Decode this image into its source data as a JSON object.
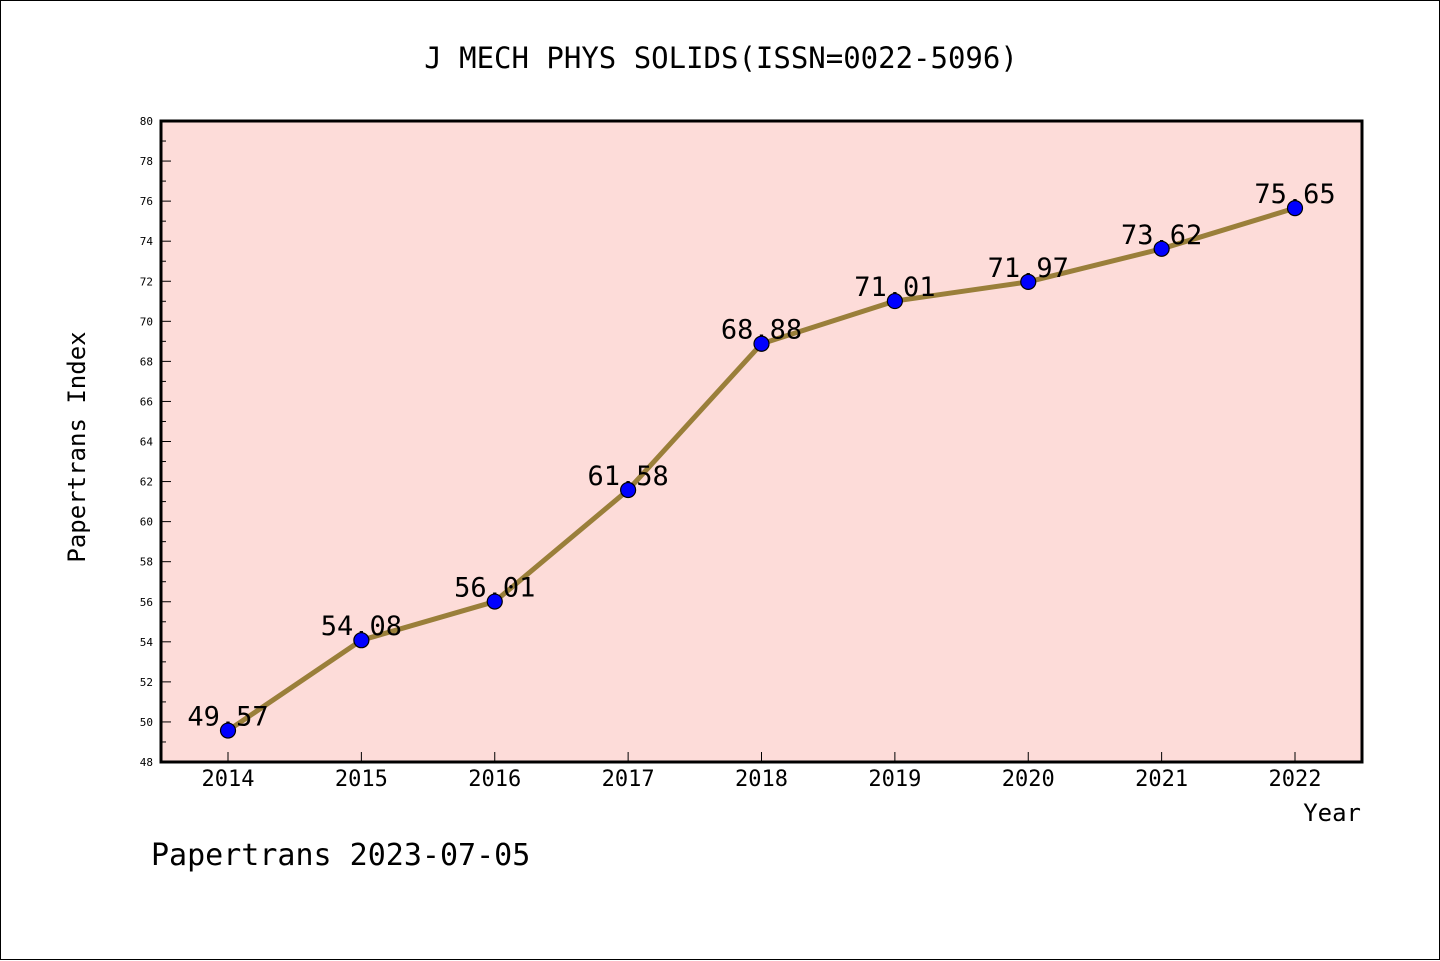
{
  "chart_data": {
    "type": "line",
    "title": "J MECH PHYS SOLIDS(ISSN=0022-5096)",
    "xlabel": "Year",
    "ylabel": "Papertrans Index",
    "ylim": [
      48,
      80
    ],
    "y_ticks": [
      "48",
      "50",
      "52",
      "54",
      "56",
      "58",
      "60",
      "62",
      "64",
      "66",
      "68",
      "70",
      "72",
      "74",
      "76",
      "78",
      "80"
    ],
    "categories": [
      "2014",
      "2015",
      "2016",
      "2017",
      "2018",
      "2019",
      "2020",
      "2021",
      "2022"
    ],
    "series": [
      {
        "values": [
          49.57,
          54.08,
          56.01,
          61.58,
          68.88,
          71.01,
          71.97,
          73.62,
          75.65
        ],
        "labels": [
          "49.57",
          "54.08",
          "56.01",
          "61.58",
          "68.88",
          "71.01",
          "71.97",
          "73.62",
          "75.65"
        ]
      }
    ],
    "grid": false,
    "background": "#fddcd9",
    "line_color": "#9a7f3a",
    "marker_color": "#0000ff"
  },
  "footer": {
    "text": "Papertrans 2023-07-05"
  }
}
